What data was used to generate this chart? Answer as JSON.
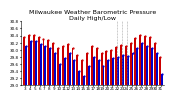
{
  "title": "Milwaukee Weather Barometric Pressure\nDaily High/Low",
  "title_fontsize": 4.5,
  "bar_width": 0.4,
  "background_color": "#ffffff",
  "high_color": "#cc0000",
  "low_color": "#0000cc",
  "ylim": [
    29.0,
    30.8
  ],
  "yticks": [
    29.0,
    29.2,
    29.4,
    29.6,
    29.8,
    30.0,
    30.2,
    30.4,
    30.6,
    30.8
  ],
  "categories": [
    "3",
    "4",
    "5",
    "6",
    "7",
    "8",
    "9",
    "10",
    "11",
    "12",
    "13",
    "14",
    "15",
    "16",
    "17",
    "18",
    "19",
    "20",
    "21",
    "22",
    "23",
    "24",
    "25",
    "26",
    "27",
    "28",
    "29",
    "30",
    "31"
  ],
  "high_values": [
    30.35,
    30.42,
    30.42,
    30.35,
    30.3,
    30.28,
    30.2,
    30.05,
    30.1,
    30.15,
    30.05,
    29.85,
    29.7,
    29.9,
    30.1,
    30.05,
    29.9,
    29.95,
    30.0,
    30.08,
    30.12,
    30.1,
    30.18,
    30.32,
    30.42,
    30.38,
    30.35,
    30.2,
    29.8
  ],
  "low_values": [
    30.1,
    30.25,
    30.25,
    30.15,
    30.1,
    30.05,
    29.9,
    29.6,
    29.75,
    29.9,
    29.7,
    29.4,
    29.25,
    29.55,
    29.8,
    29.7,
    29.55,
    29.7,
    29.75,
    29.8,
    29.85,
    29.82,
    29.9,
    30.05,
    30.2,
    30.1,
    30.05,
    29.9,
    29.3
  ],
  "dashed_bar_indices": [
    19,
    20,
    21
  ],
  "dot_color_high": "#cc0000",
  "dot_color_low": "#0000cc",
  "tick_fontsize": 3.0
}
